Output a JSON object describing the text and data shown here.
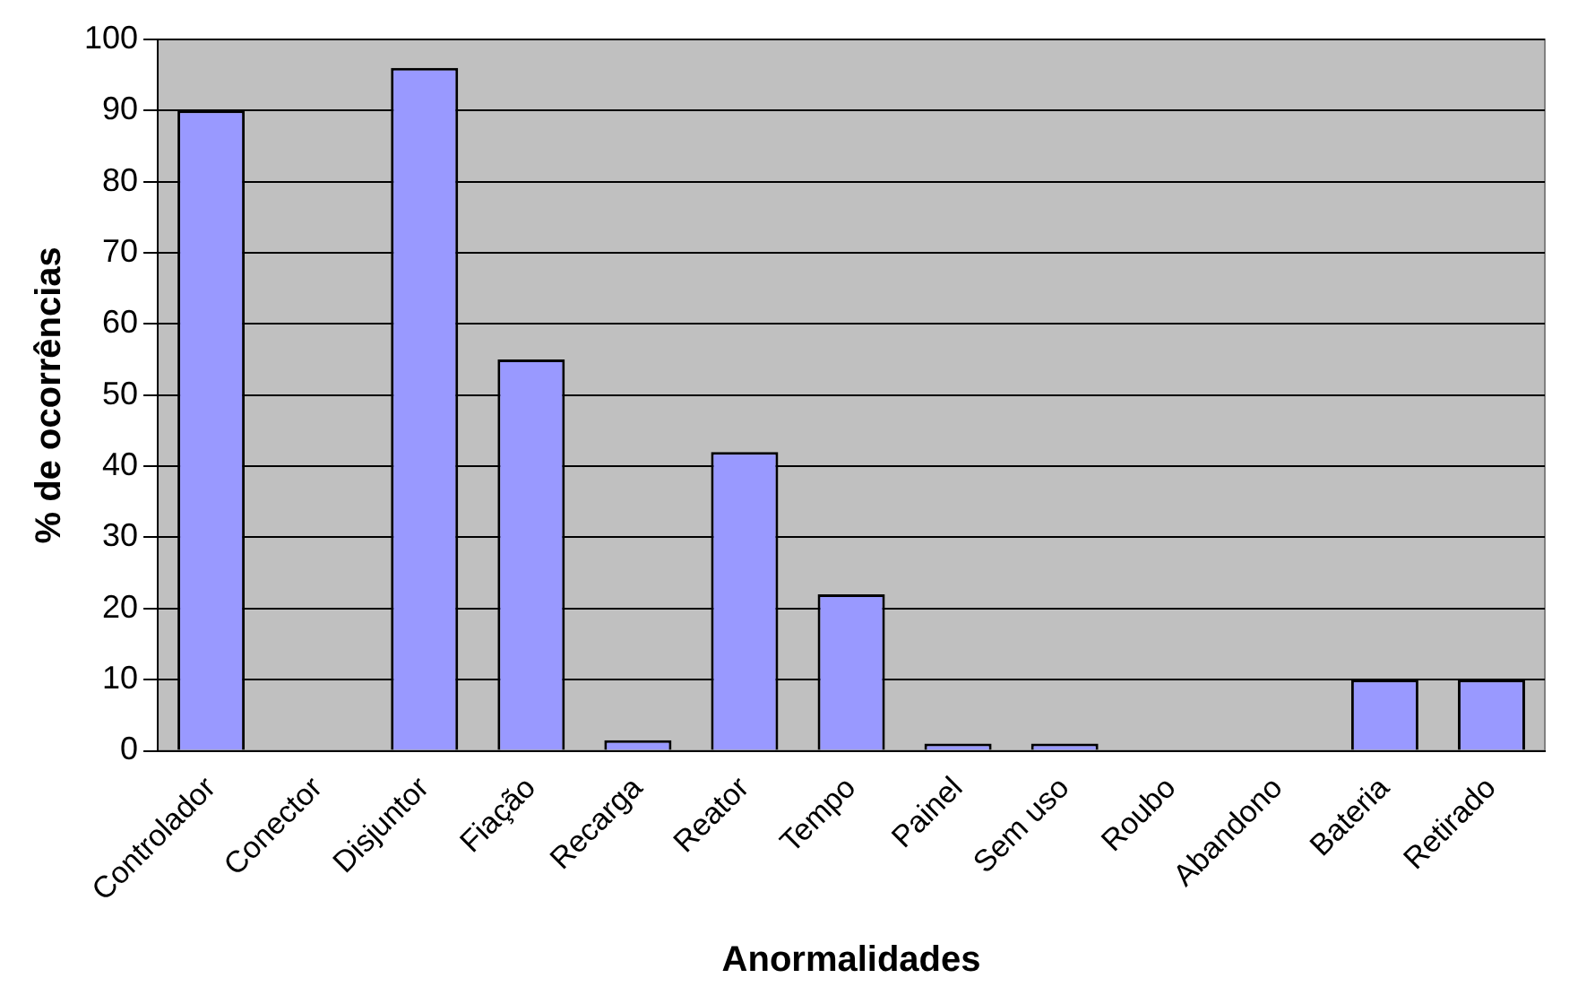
{
  "chart_data": {
    "type": "bar",
    "xlabel": "Anormalidades",
    "ylabel": "% de ocorrências",
    "categories": [
      "Controlador",
      "Conector",
      "Disjuntor",
      "Fiação",
      "Recarga",
      "Reator",
      "Tempo",
      "Painel",
      "Sem uso",
      "Roubo",
      "Abandono",
      "Bateria",
      "Retirado"
    ],
    "values": [
      90,
      0,
      96,
      55,
      1.5,
      42,
      22,
      1,
      1,
      0,
      0,
      10,
      10
    ],
    "color": "#9999ff",
    "ylim": [
      0,
      100
    ],
    "yticks": [
      0,
      10,
      20,
      30,
      40,
      50,
      60,
      70,
      80,
      90,
      100
    ],
    "grid": "y",
    "legend": false
  }
}
